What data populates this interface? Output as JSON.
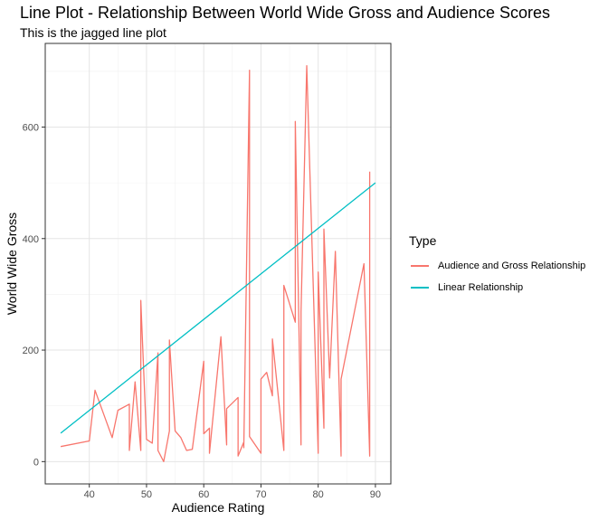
{
  "chart_data": {
    "type": "line",
    "title": "Line Plot - Relationship Between World Wide Gross and Audience Scores",
    "subtitle": "This is the jagged line plot",
    "xlabel": "Audience Rating",
    "ylabel": "World Wide Gross",
    "xlim": [
      32.3,
      92.7
    ],
    "ylim": [
      -40,
      750
    ],
    "xticks": [
      40,
      50,
      60,
      70,
      80,
      90
    ],
    "yticks": [
      0,
      200,
      400,
      600
    ],
    "grid": true,
    "legend": {
      "title": "Type",
      "position": "right"
    },
    "series": [
      {
        "name": "Audience and Gross Relationship",
        "color": "#F8766D",
        "x": [
          35,
          40,
          41,
          44,
          45,
          47,
          47,
          48,
          49,
          49,
          50,
          51,
          52,
          52,
          53,
          54,
          54,
          55,
          56,
          57,
          58,
          60,
          60,
          61,
          61,
          63,
          64,
          64,
          66,
          66,
          67,
          67,
          68,
          68,
          70,
          70,
          71,
          72,
          72,
          74,
          74,
          76,
          76,
          77,
          77,
          78,
          80,
          80,
          81,
          81,
          82,
          83,
          84,
          84,
          88,
          89,
          89
        ],
        "y": [
          27,
          37,
          128,
          43,
          92,
          103,
          20,
          143,
          20,
          289,
          40,
          33,
          195,
          20,
          0,
          55,
          218,
          55,
          43,
          20,
          22,
          180,
          50,
          60,
          15,
          224,
          30,
          95,
          115,
          10,
          35,
          25,
          702,
          45,
          15,
          148,
          160,
          118,
          220,
          20,
          316,
          250,
          610,
          30,
          268,
          710,
          15,
          340,
          60,
          417,
          150,
          377,
          10,
          148,
          355,
          10,
          520
        ]
      },
      {
        "name": "Linear Relationship",
        "color": "#00BFC4",
        "x": [
          35,
          90
        ],
        "y": [
          51,
          500
        ]
      }
    ]
  }
}
